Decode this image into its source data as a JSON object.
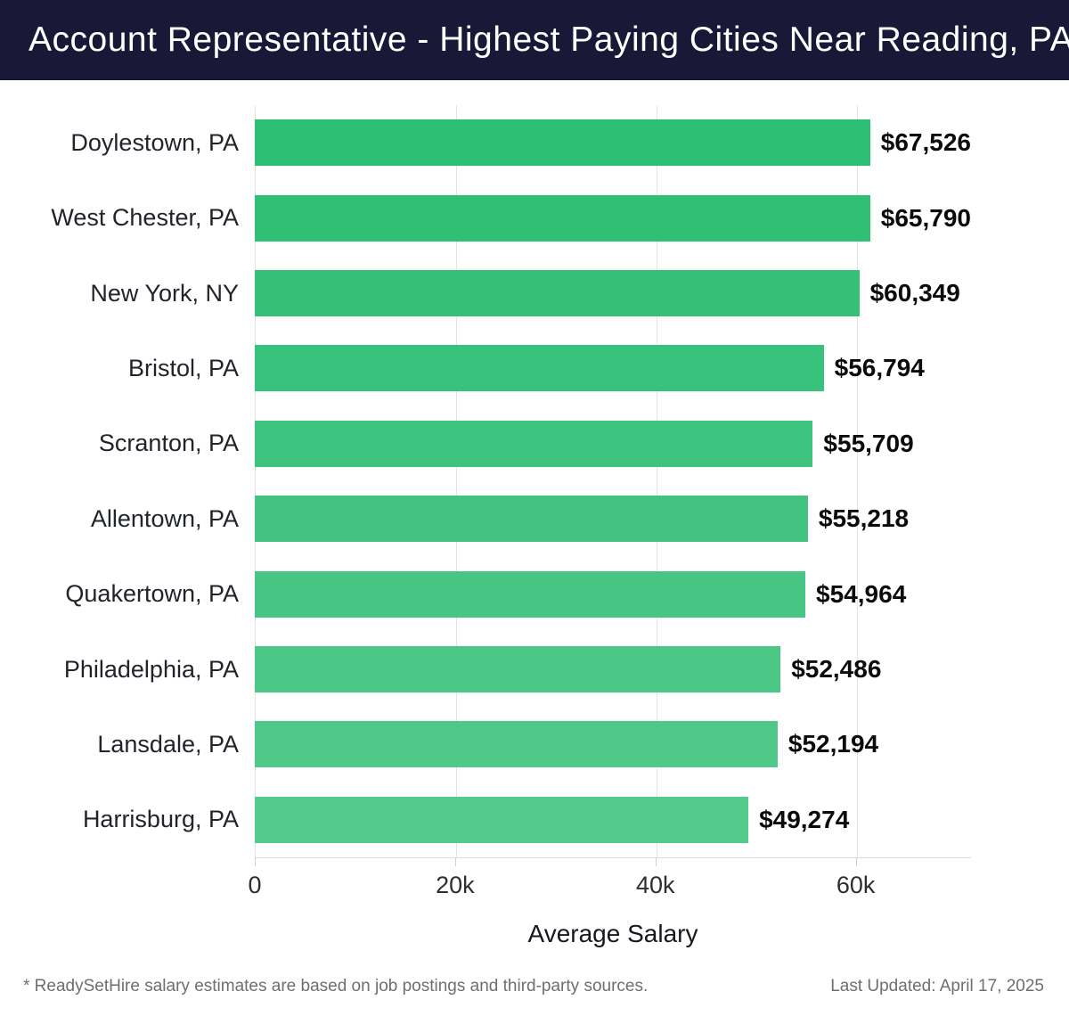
{
  "header": {
    "title": "Account Representative - Highest Paying Cities Near Reading, PA"
  },
  "chart_data": {
    "type": "bar",
    "orientation": "horizontal",
    "title": "Account Representative - Highest Paying Cities Near Reading, PA",
    "categories": [
      "Doylestown, PA",
      "West Chester, PA",
      "New York, NY",
      "Bristol, PA",
      "Scranton, PA",
      "Allentown, PA",
      "Quakertown, PA",
      "Philadelphia, PA",
      "Lansdale, PA",
      "Harrisburg, PA"
    ],
    "values": [
      67526,
      65790,
      60349,
      56794,
      55709,
      55218,
      54964,
      52486,
      52194,
      49274
    ],
    "value_labels": [
      "$67,526",
      "$65,790",
      "$60,349",
      "$56,794",
      "$55,709",
      "$55,218",
      "$54,964",
      "$52,486",
      "$52,194",
      "$49,274"
    ],
    "bar_colors": [
      "#2cbe73",
      "#30bf75",
      "#35c078",
      "#39c27b",
      "#3ec37e",
      "#42c480",
      "#47c683",
      "#4bc786",
      "#50c889",
      "#54ca8b"
    ],
    "xlabel": "Average Salary",
    "ylabel": "",
    "xlim": [
      0,
      71500
    ],
    "xticks": [
      {
        "value": 0,
        "label": "0"
      },
      {
        "value": 20000,
        "label": "20k"
      },
      {
        "value": 40000,
        "label": "40k"
      },
      {
        "value": 60000,
        "label": "60k"
      }
    ],
    "grid": true,
    "legend": false
  },
  "footer": {
    "note": "* ReadySetHire salary estimates are based on job postings and third-party sources.",
    "updated": "Last Updated: April 17, 2025"
  },
  "colors": {
    "header_bg": "#191937",
    "header_text": "#ffffff",
    "grid": "#e4e4e4",
    "value_text": "#0b0b0b",
    "category_text": "#21242b",
    "footer_text": "#6e6e73"
  }
}
